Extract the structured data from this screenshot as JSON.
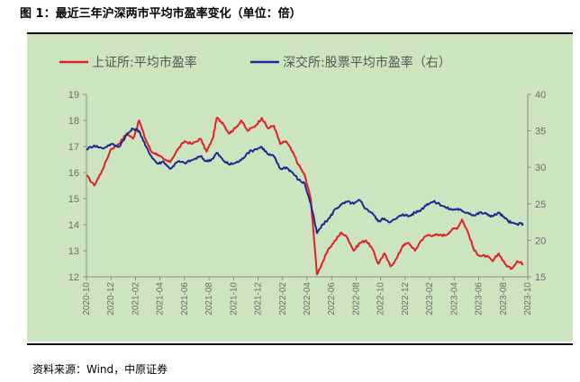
{
  "title": "图 1：最近三年沪深两市平均市盈率变化（单位：倍）",
  "source": "资料来源：Wind，中原证券",
  "colors": {
    "background": "#cce5c0",
    "red": "#e21f26",
    "blue": "#1c2a8f",
    "axis": "#8a8a8a"
  },
  "chart_data": {
    "type": "line",
    "x_ticks": [
      "2020-10",
      "2020-12",
      "2021-02",
      "2021-04",
      "2021-06",
      "2021-08",
      "2021-10",
      "2021-12",
      "2022-02",
      "2022-04",
      "2022-06",
      "2022-08",
      "2022-10",
      "2022-12",
      "2023-02",
      "2023-04",
      "2023-06",
      "2023-08",
      "2023-10"
    ],
    "left_axis": {
      "min": 12,
      "max": 19,
      "ticks": [
        12,
        13,
        14,
        15,
        16,
        17,
        18,
        19
      ]
    },
    "right_axis": {
      "min": 15,
      "max": 40,
      "ticks": [
        15,
        20,
        25,
        30,
        35,
        40
      ]
    },
    "series": [
      {
        "name": "上证所:平均市盈率",
        "color": "#e21f26",
        "axis": "left",
        "points": [
          [
            "2020-10-01",
            15.9
          ],
          [
            "2020-10-20",
            15.5
          ],
          [
            "2020-11-10",
            16.1
          ],
          [
            "2020-12-01",
            16.9
          ],
          [
            "2020-12-20",
            17.1
          ],
          [
            "2021-01-10",
            17.5
          ],
          [
            "2021-01-25",
            17.3
          ],
          [
            "2021-02-10",
            18.0
          ],
          [
            "2021-02-25",
            17.3
          ],
          [
            "2021-03-10",
            16.8
          ],
          [
            "2021-03-25",
            16.7
          ],
          [
            "2021-04-10",
            16.5
          ],
          [
            "2021-04-25",
            16.4
          ],
          [
            "2021-05-15",
            16.9
          ],
          [
            "2021-06-01",
            17.2
          ],
          [
            "2021-06-20",
            17.1
          ],
          [
            "2021-07-10",
            17.3
          ],
          [
            "2021-07-25",
            16.8
          ],
          [
            "2021-08-10",
            17.3
          ],
          [
            "2021-08-20",
            18.1
          ],
          [
            "2021-09-05",
            17.9
          ],
          [
            "2021-09-20",
            17.5
          ],
          [
            "2021-10-05",
            17.7
          ],
          [
            "2021-10-20",
            18.0
          ],
          [
            "2021-11-05",
            17.6
          ],
          [
            "2021-11-25",
            17.8
          ],
          [
            "2021-12-10",
            18.1
          ],
          [
            "2021-12-25",
            17.7
          ],
          [
            "2022-01-10",
            17.8
          ],
          [
            "2022-01-25",
            17.1
          ],
          [
            "2022-02-10",
            17.2
          ],
          [
            "2022-02-25",
            16.8
          ],
          [
            "2022-03-10",
            16.3
          ],
          [
            "2022-03-25",
            15.9
          ],
          [
            "2022-04-10",
            15.0
          ],
          [
            "2022-04-25",
            12.1
          ],
          [
            "2022-05-10",
            12.6
          ],
          [
            "2022-05-25",
            13.1
          ],
          [
            "2022-06-10",
            13.4
          ],
          [
            "2022-06-25",
            13.7
          ],
          [
            "2022-07-10",
            13.5
          ],
          [
            "2022-07-25",
            13.0
          ],
          [
            "2022-08-10",
            13.3
          ],
          [
            "2022-08-25",
            13.4
          ],
          [
            "2022-09-10",
            13.1
          ],
          [
            "2022-09-25",
            12.5
          ],
          [
            "2022-10-10",
            12.9
          ],
          [
            "2022-10-25",
            12.4
          ],
          [
            "2022-11-10",
            12.7
          ],
          [
            "2022-11-25",
            13.2
          ],
          [
            "2022-12-10",
            13.3
          ],
          [
            "2022-12-25",
            13.0
          ],
          [
            "2023-01-10",
            13.4
          ],
          [
            "2023-01-25",
            13.6
          ],
          [
            "2023-02-10",
            13.6
          ],
          [
            "2023-02-25",
            13.6
          ],
          [
            "2023-03-10",
            13.6
          ],
          [
            "2023-03-25",
            13.8
          ],
          [
            "2023-04-10",
            13.9
          ],
          [
            "2023-04-20",
            14.2
          ],
          [
            "2023-05-05",
            13.7
          ],
          [
            "2023-05-20",
            13.0
          ],
          [
            "2023-06-05",
            12.8
          ],
          [
            "2023-06-20",
            12.8
          ],
          [
            "2023-07-05",
            12.6
          ],
          [
            "2023-07-20",
            12.9
          ],
          [
            "2023-08-05",
            12.5
          ],
          [
            "2023-08-20",
            12.3
          ],
          [
            "2023-09-05",
            12.6
          ],
          [
            "2023-09-20",
            12.5
          ]
        ]
      },
      {
        "name": "深交所:股票平均市盈率（右）",
        "color": "#1c2a8f",
        "axis": "right",
        "points": [
          [
            "2020-10-01",
            32.5
          ],
          [
            "2020-10-20",
            33.0
          ],
          [
            "2020-11-10",
            32.6
          ],
          [
            "2020-12-01",
            33.2
          ],
          [
            "2020-12-20",
            32.8
          ],
          [
            "2021-01-10",
            34.5
          ],
          [
            "2021-01-25",
            35.3
          ],
          [
            "2021-02-10",
            35.0
          ],
          [
            "2021-02-25",
            33.0
          ],
          [
            "2021-03-10",
            31.5
          ],
          [
            "2021-03-25",
            30.5
          ],
          [
            "2021-04-10",
            30.8
          ],
          [
            "2021-04-25",
            29.8
          ],
          [
            "2021-05-15",
            30.8
          ],
          [
            "2021-06-01",
            30.6
          ],
          [
            "2021-06-20",
            31.0
          ],
          [
            "2021-07-10",
            31.5
          ],
          [
            "2021-07-25",
            30.8
          ],
          [
            "2021-08-10",
            31.2
          ],
          [
            "2021-08-20",
            32.0
          ],
          [
            "2021-09-05",
            31.0
          ],
          [
            "2021-09-20",
            30.4
          ],
          [
            "2021-10-05",
            30.6
          ],
          [
            "2021-10-20",
            31.0
          ],
          [
            "2021-11-05",
            32.0
          ],
          [
            "2021-11-25",
            32.5
          ],
          [
            "2021-12-10",
            32.8
          ],
          [
            "2021-12-25",
            31.8
          ],
          [
            "2022-01-10",
            31.5
          ],
          [
            "2022-01-25",
            29.8
          ],
          [
            "2022-02-10",
            30.0
          ],
          [
            "2022-02-25",
            29.3
          ],
          [
            "2022-03-10",
            28.3
          ],
          [
            "2022-03-25",
            27.8
          ],
          [
            "2022-04-10",
            25.0
          ],
          [
            "2022-04-25",
            21.0
          ],
          [
            "2022-05-10",
            22.2
          ],
          [
            "2022-05-25",
            23.0
          ],
          [
            "2022-06-10",
            24.3
          ],
          [
            "2022-06-25",
            24.9
          ],
          [
            "2022-07-10",
            25.3
          ],
          [
            "2022-07-25",
            25.0
          ],
          [
            "2022-08-10",
            25.5
          ],
          [
            "2022-08-25",
            24.3
          ],
          [
            "2022-09-10",
            23.8
          ],
          [
            "2022-09-25",
            22.6
          ],
          [
            "2022-10-10",
            23.0
          ],
          [
            "2022-10-25",
            22.5
          ],
          [
            "2022-11-10",
            23.0
          ],
          [
            "2022-11-25",
            23.6
          ],
          [
            "2022-12-10",
            23.3
          ],
          [
            "2022-12-25",
            23.8
          ],
          [
            "2023-01-10",
            24.2
          ],
          [
            "2023-01-25",
            25.0
          ],
          [
            "2023-02-10",
            25.3
          ],
          [
            "2023-02-25",
            25.0
          ],
          [
            "2023-03-10",
            24.5
          ],
          [
            "2023-03-25",
            24.2
          ],
          [
            "2023-04-10",
            24.3
          ],
          [
            "2023-04-20",
            24.0
          ],
          [
            "2023-05-05",
            23.8
          ],
          [
            "2023-05-20",
            23.4
          ],
          [
            "2023-06-05",
            23.8
          ],
          [
            "2023-06-20",
            23.6
          ],
          [
            "2023-07-05",
            23.3
          ],
          [
            "2023-07-20",
            23.8
          ],
          [
            "2023-08-05",
            23.0
          ],
          [
            "2023-08-20",
            22.4
          ],
          [
            "2023-09-05",
            22.2
          ],
          [
            "2023-09-20",
            22.3
          ]
        ]
      }
    ]
  }
}
